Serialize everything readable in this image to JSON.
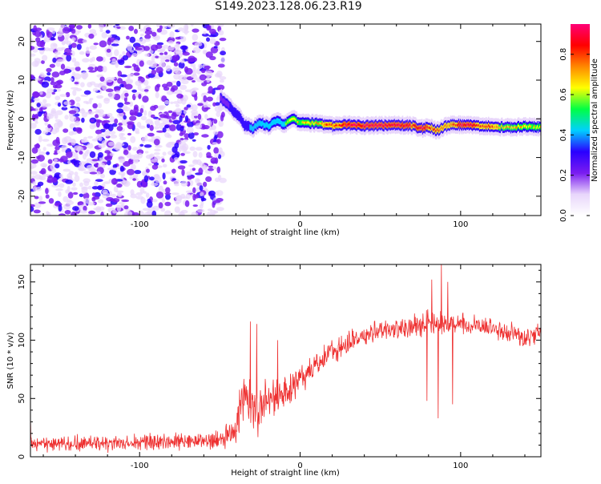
{
  "figure": {
    "title": "S149.2023.128.06.23.R19"
  },
  "chart_data": [
    {
      "type": "heatmap",
      "title": "S149.2023.128.06.23.R19",
      "xlabel": "Height of straight line (km)",
      "ylabel": "Frequency (Hz)",
      "xlim": [
        -168,
        150
      ],
      "ylim": [
        -25,
        24.5
      ],
      "xticks": [
        -100,
        0,
        100
      ],
      "yticks": [
        -20,
        -10,
        0,
        10,
        20
      ],
      "grid": false,
      "noise_region_x": [
        -168,
        -48
      ],
      "noise_cutoff_note": "",
      "colorbar": {
        "label": "Normalized spectral amplitude",
        "range": [
          0,
          0.95
        ],
        "ticks": [
          0.0,
          0.2,
          0.4,
          0.6,
          0.8
        ],
        "palette": [
          "#ffffff",
          "#e8d6fb",
          "#7a1cf0",
          "#2a00ff",
          "#00d0ff",
          "#00ff44",
          "#ffff00",
          "#ff8800",
          "#ff0000",
          "#ff0077"
        ]
      },
      "ridge": {
        "description": "",
        "x": [
          -50,
          -45,
          -42,
          -38,
          -35,
          -30,
          -25,
          -20,
          -15,
          -10,
          -5,
          0,
          10,
          20,
          30,
          40,
          50,
          60,
          70,
          75,
          80,
          85,
          90,
          95,
          100,
          110,
          120,
          130,
          140,
          148
        ],
        "y": [
          5.5,
          3.5,
          2.0,
          0.5,
          -1.5,
          -2.5,
          -1.0,
          -2.0,
          -0.5,
          -1.5,
          0.0,
          -1.0,
          -1.2,
          -1.8,
          -1.5,
          -1.8,
          -1.7,
          -1.6,
          -1.8,
          -2.5,
          -2.2,
          -3.0,
          -2.0,
          -1.5,
          -1.5,
          -1.8,
          -2.0,
          -2.2,
          -2.0,
          -2.1
        ],
        "amplitude": [
          0.25,
          0.3,
          0.35,
          0.35,
          0.4,
          0.45,
          0.45,
          0.5,
          0.55,
          0.55,
          0.6,
          0.6,
          0.65,
          0.75,
          0.85,
          0.9,
          0.9,
          0.85,
          0.8,
          0.85,
          0.8,
          0.75,
          0.7,
          0.75,
          0.85,
          0.8,
          0.7,
          0.65,
          0.6,
          0.6
        ]
      }
    },
    {
      "type": "line",
      "xlabel": "Height of straight line (km)",
      "ylabel": "SNR (10 * v/v)",
      "xlim": [
        -168,
        150
      ],
      "ylim": [
        0,
        165
      ],
      "xticks": [
        -100,
        0,
        100
      ],
      "yticks": [
        0,
        50,
        100,
        150
      ],
      "grid": false,
      "series": [
        {
          "color": "#ee3030",
          "envelope_x": [
            -168,
            -150,
            -120,
            -100,
            -80,
            -60,
            -50,
            -45,
            -40,
            -35,
            -30,
            -25,
            -20,
            -15,
            -10,
            -5,
            0,
            10,
            20,
            30,
            40,
            50,
            60,
            70,
            80,
            90,
            100,
            110,
            120,
            130,
            140,
            150
          ],
          "envelope_y": [
            11,
            11,
            12,
            13,
            13,
            13,
            14,
            17,
            25,
            55,
            42,
            40,
            45,
            50,
            55,
            60,
            68,
            80,
            92,
            98,
            104,
            108,
            110,
            112,
            113,
            113,
            114,
            112,
            110,
            106,
            102,
            107
          ],
          "spread": [
            8,
            8,
            8,
            9,
            9,
            9,
            10,
            12,
            18,
            30,
            25,
            24,
            22,
            20,
            20,
            18,
            16,
            14,
            12,
            12,
            12,
            12,
            12,
            12,
            14,
            14,
            12,
            10,
            10,
            10,
            10,
            10
          ],
          "spikes": [
            {
              "x": -168,
              "y": 35
            },
            {
              "x": -31,
              "y": 116
            },
            {
              "x": -27,
              "y": 114
            },
            {
              "x": -14,
              "y": 100
            },
            {
              "x": 79,
              "y": 48
            },
            {
              "x": 82,
              "y": 152
            },
            {
              "x": 86,
              "y": 33
            },
            {
              "x": 88,
              "y": 165
            },
            {
              "x": 92,
              "y": 150
            },
            {
              "x": 95,
              "y": 45
            }
          ]
        }
      ]
    }
  ]
}
